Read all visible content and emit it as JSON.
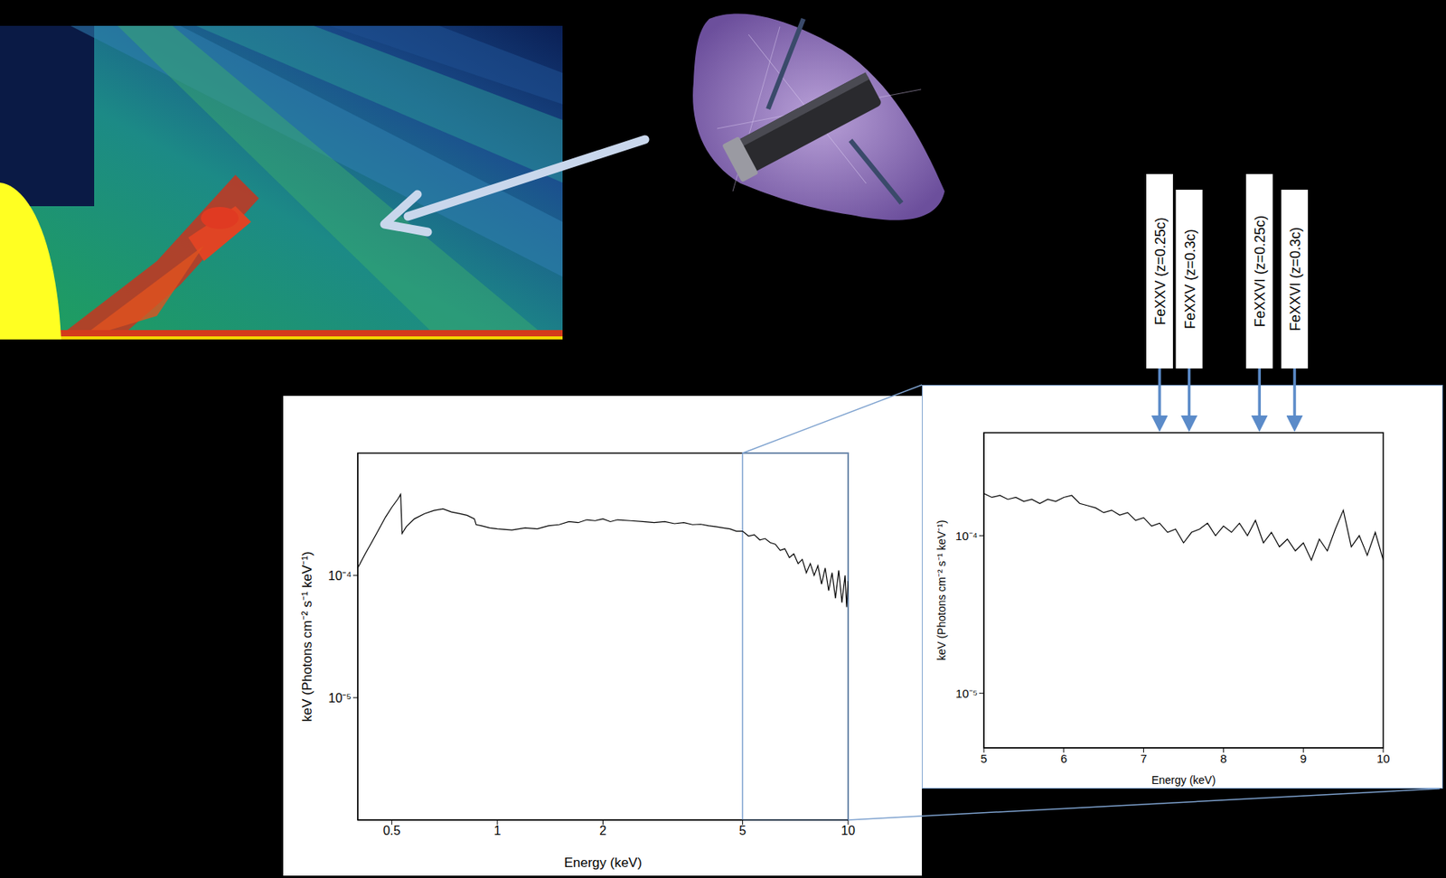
{
  "chart_data": [
    {
      "type": "line",
      "x_label": "Energy (keV)",
      "y_label": "keV (Photons cm⁻² s⁻¹ keV⁻¹)",
      "color": "#000000",
      "log": true,
      "xlim": [
        0.4,
        10
      ],
      "xticks": [
        0.5,
        1,
        2,
        5,
        10
      ],
      "ylim": [
        1e-06,
        0.001
      ],
      "yticks": [
        {
          "value": 0.0001,
          "label": "10⁻⁴"
        },
        {
          "value": 1e-05,
          "label": "10⁻⁵"
        }
      ],
      "x": [
        0.4,
        0.42,
        0.44,
        0.46,
        0.48,
        0.5,
        0.52,
        0.53,
        0.535,
        0.55,
        0.58,
        0.62,
        0.66,
        0.7,
        0.74,
        0.78,
        0.82,
        0.86,
        0.87,
        0.9,
        0.95,
        1.0,
        1.1,
        1.2,
        1.3,
        1.4,
        1.5,
        1.6,
        1.7,
        1.8,
        1.9,
        2.0,
        2.1,
        2.2,
        2.4,
        2.6,
        2.8,
        3.0,
        3.2,
        3.4,
        3.6,
        3.8,
        4.0,
        4.2,
        4.4,
        4.6,
        4.8,
        5.0,
        5.2,
        5.4,
        5.6,
        5.8,
        6.0,
        6.2,
        6.4,
        6.6,
        6.8,
        7.0,
        7.2,
        7.4,
        7.6,
        7.8,
        8.0,
        8.2,
        8.4,
        8.6,
        8.8,
        9.0,
        9.2,
        9.4,
        9.6,
        9.8,
        9.9,
        10.0
      ],
      "values": [
        0.000115,
        0.00015,
        0.00019,
        0.00024,
        0.0003,
        0.00036,
        0.00042,
        0.00046,
        0.00022,
        0.00025,
        0.00029,
        0.00032,
        0.00034,
        0.00035,
        0.00033,
        0.00032,
        0.00031,
        0.00029,
        0.00026,
        0.000255,
        0.000245,
        0.00024,
        0.000235,
        0.000245,
        0.00024,
        0.000255,
        0.00026,
        0.000275,
        0.00027,
        0.000285,
        0.00028,
        0.00029,
        0.000275,
        0.000285,
        0.00028,
        0.000275,
        0.00027,
        0.000275,
        0.000265,
        0.00027,
        0.00026,
        0.000262,
        0.000255,
        0.00025,
        0.000245,
        0.00024,
        0.00023,
        0.00023,
        0.00021,
        0.000215,
        0.000195,
        0.0002,
        0.000185,
        0.00018,
        0.00016,
        0.000165,
        0.00014,
        0.00015,
        0.000125,
        0.000135,
        0.000105,
        0.000125,
        0.0001,
        0.00012,
        8.5e-05,
        0.000115,
        7.5e-05,
        0.000105,
        6.5e-05,
        0.00011,
        6e-05,
        0.0001,
        5.5e-05,
        9e-05
      ]
    },
    {
      "type": "line",
      "x_label": "Energy (keV)",
      "y_label": "keV (Photons cm⁻² s⁻¹ keV⁻¹)",
      "color": "#000000",
      "log": "y",
      "xlim": [
        5,
        10
      ],
      "xticks": [
        5,
        6,
        7,
        8,
        9,
        10
      ],
      "ylim": [
        4.5e-06,
        0.00045
      ],
      "yticks": [
        {
          "value": 0.0001,
          "label": "10⁻⁴"
        },
        {
          "value": 1e-05,
          "label": "10⁻⁵"
        }
      ],
      "x": [
        5.0,
        5.1,
        5.2,
        5.3,
        5.4,
        5.5,
        5.6,
        5.7,
        5.8,
        5.9,
        6.0,
        6.1,
        6.2,
        6.3,
        6.4,
        6.5,
        6.6,
        6.7,
        6.8,
        6.9,
        7.0,
        7.1,
        7.2,
        7.3,
        7.4,
        7.5,
        7.6,
        7.7,
        7.8,
        7.9,
        8.0,
        8.1,
        8.2,
        8.3,
        8.4,
        8.5,
        8.6,
        8.7,
        8.8,
        8.9,
        9.0,
        9.1,
        9.2,
        9.3,
        9.4,
        9.5,
        9.6,
        9.7,
        9.8,
        9.9,
        10.0
      ],
      "values": [
        0.000185,
        0.000175,
        0.00018,
        0.00017,
        0.000175,
        0.000165,
        0.00017,
        0.00016,
        0.00017,
        0.000165,
        0.000175,
        0.00018,
        0.00016,
        0.000155,
        0.00015,
        0.00014,
        0.000145,
        0.000135,
        0.00014,
        0.000125,
        0.00013,
        0.000115,
        0.00012,
        0.000105,
        0.00011,
        9e-05,
        0.000105,
        0.00011,
        0.00012,
        0.0001,
        0.000115,
        0.000105,
        0.00012,
        0.0001,
        0.000125,
        9e-05,
        0.000105,
        8.5e-05,
        9.5e-05,
        8e-05,
        9e-05,
        7e-05,
        9.5e-05,
        8e-05,
        0.00011,
        0.000145,
        8.5e-05,
        0.0001,
        7.5e-05,
        0.000105,
        7e-05
      ],
      "annotations": [
        {
          "text": "FeXXV (z=0.25c)",
          "x": 7.2
        },
        {
          "text": "FeXXV (z=0.3c)",
          "x": 7.57
        },
        {
          "text": "FeXXVI (z=0.25c)",
          "x": 8.45
        },
        {
          "text": "FeXXVI (z=0.3c)",
          "x": 8.89
        }
      ]
    }
  ]
}
